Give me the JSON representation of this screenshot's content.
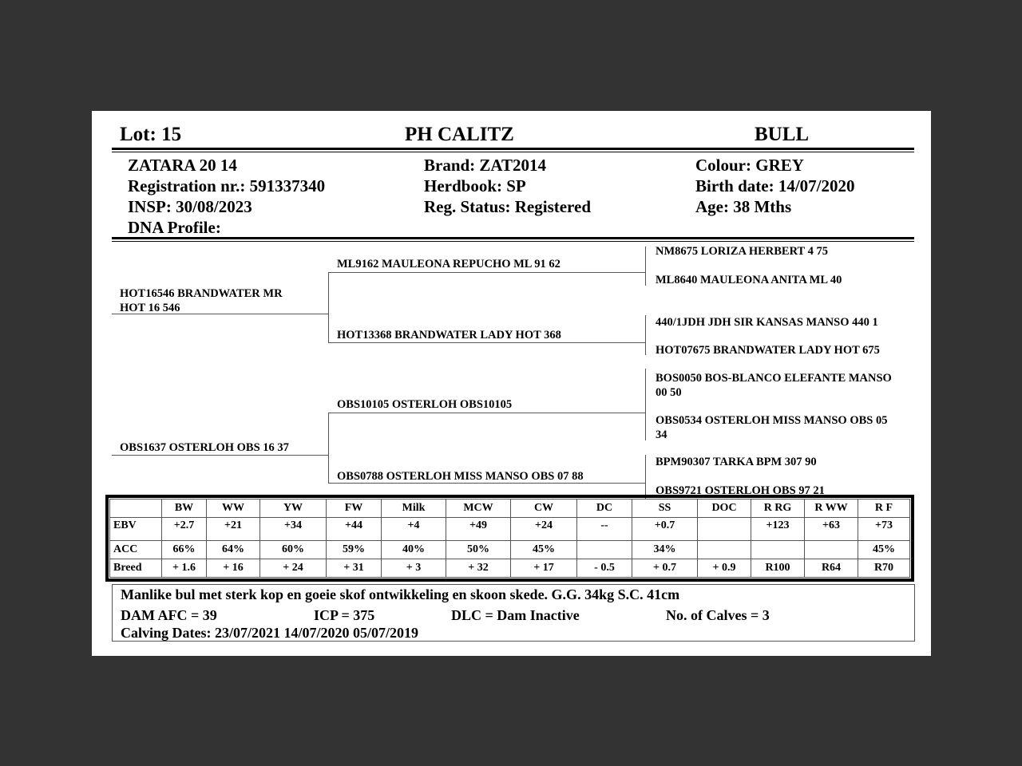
{
  "header": {
    "lot": "Lot:  15",
    "seller": "PH CALITZ",
    "sex": "BULL"
  },
  "info": {
    "name": "ZATARA 20 14",
    "registration": "Registration nr.: 591337340",
    "insp": "INSP: 30/08/2023",
    "dna": "DNA Profile:",
    "brand": "Brand:  ZAT2014",
    "herdbook": "Herdbook: SP",
    "reg_status": "Reg. Status: Registered",
    "colour": "Colour:  GREY",
    "birth_date": "Birth date:  14/07/2020",
    "age": "Age: 38 Mths"
  },
  "pedigree": {
    "sire": {
      "line1": "HOT16546 BRANDWATER MR",
      "line2": "HOT 16 546"
    },
    "dam": "OBS1637 OSTERLOH OBS 16 37",
    "ss": "ML9162 MAULEONA REPUCHO ML 91 62",
    "sd": "HOT13368 BRANDWATER LADY HOT 368",
    "ds": "OBS10105 OSTERLOH OBS10105",
    "dd": "OBS0788 OSTERLOH MISS MANSO OBS 07 88",
    "sss": "NM8675 LORIZA HERBERT 4 75",
    "ssd": "ML8640 MAULEONA ANITA ML 40",
    "sds": "440/1JDH JDH SIR KANSAS MANSO 440 1",
    "sdd": "HOT07675 BRANDWATER LADY HOT 675",
    "dss": {
      "line1": "BOS0050 BOS-BLANCO ELEFANTE MANSO",
      "line2": "00 50"
    },
    "dsd": {
      "line1": "OBS0534 OSTERLOH MISS MANSO OBS 05",
      "line2": "34"
    },
    "dds": "BPM90307 TARKA BPM 307 90",
    "ddd": "OBS9721 OSTERLOH OBS 97 21"
  },
  "ebv_table": {
    "headers": [
      "",
      "BW",
      "WW",
      "YW",
      "FW",
      "Milk",
      "MCW",
      "CW",
      "DC",
      "SS",
      "DOC",
      "R RG",
      "R WW",
      "R F"
    ],
    "rows": [
      [
        "EBV",
        "+2.7",
        "+21",
        "+34",
        "+44",
        "+4",
        "+49",
        "+24",
        "--",
        "+0.7",
        "",
        "+123",
        "+63",
        "+73"
      ],
      [
        "ACC",
        "66%",
        "64%",
        "60%",
        "59%",
        "40%",
        "50%",
        "45%",
        "",
        "34%",
        "",
        "",
        "",
        "45%"
      ],
      [
        "Breed",
        "+ 1.6",
        "+ 16",
        "+ 24",
        "+ 31",
        "+ 3",
        "+ 32",
        "+ 17",
        "- 0.5",
        "+ 0.7",
        "+ 0.9",
        "R100",
        "R64",
        "R70"
      ]
    ]
  },
  "remarks": {
    "comment": "Manlike bul met sterk kop en goeie skof ontwikkeling en skoon skede. G.G. 34kg S.C. 41cm",
    "dam_afc": "DAM AFC = 39",
    "icp": "ICP = 375",
    "dlc": "DLC = Dam Inactive",
    "calves": "No. of Calves = 3",
    "calving": "Calving Dates: 23/07/2021  14/07/2020  05/07/2019"
  }
}
